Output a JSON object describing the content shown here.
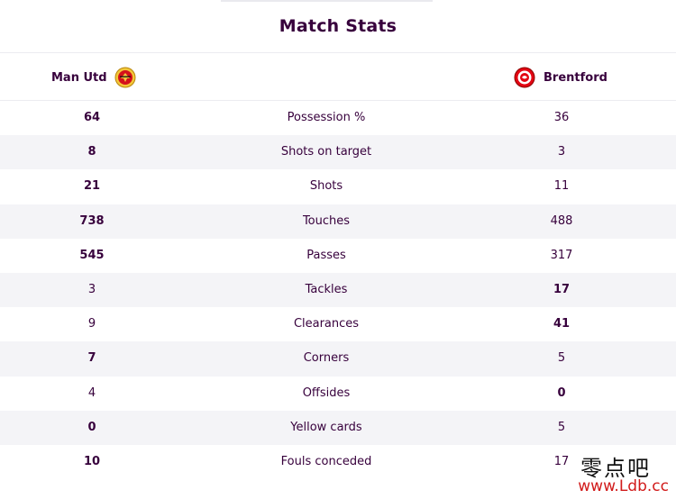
{
  "title": "Match Stats",
  "home_team": {
    "name": "Man Utd",
    "crest_icon": "man-utd-crest-icon"
  },
  "away_team": {
    "name": "Brentford",
    "crest_icon": "brentford-crest-icon"
  },
  "colors": {
    "text": "#37003c",
    "row_shade": "#f4f4f7",
    "watermark_url": "#d11a1a"
  },
  "stats": [
    {
      "label": "Possession %",
      "home": "64",
      "away": "36",
      "leader": "home"
    },
    {
      "label": "Shots on target",
      "home": "8",
      "away": "3",
      "leader": "home"
    },
    {
      "label": "Shots",
      "home": "21",
      "away": "11",
      "leader": "home"
    },
    {
      "label": "Touches",
      "home": "738",
      "away": "488",
      "leader": "home"
    },
    {
      "label": "Passes",
      "home": "545",
      "away": "317",
      "leader": "home"
    },
    {
      "label": "Tackles",
      "home": "3",
      "away": "17",
      "leader": "away"
    },
    {
      "label": "Clearances",
      "home": "9",
      "away": "41",
      "leader": "away"
    },
    {
      "label": "Corners",
      "home": "7",
      "away": "5",
      "leader": "home"
    },
    {
      "label": "Offsides",
      "home": "4",
      "away": "0",
      "leader": "away"
    },
    {
      "label": "Yellow cards",
      "home": "0",
      "away": "5",
      "leader": "home"
    },
    {
      "label": "Fouls conceded",
      "home": "10",
      "away": "17",
      "leader": "home"
    }
  ],
  "watermark": {
    "chinese": "零点吧",
    "url": "www.Ldb.cc"
  }
}
